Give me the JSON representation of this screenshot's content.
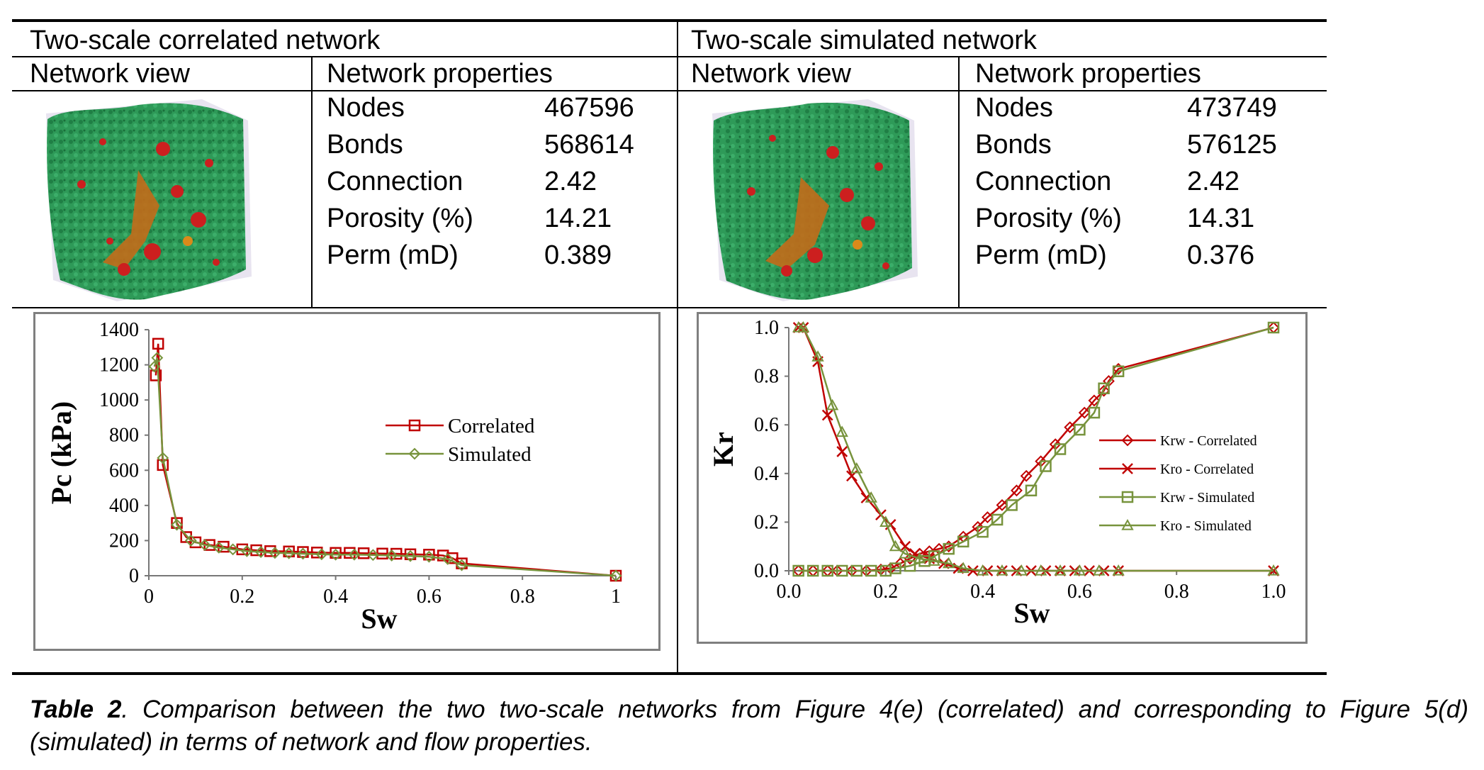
{
  "table": {
    "left": {
      "header": "Two-scale correlated network",
      "view_label": "Network view",
      "props_label": "Network properties",
      "properties": [
        {
          "name": "Nodes",
          "value": "467596"
        },
        {
          "name": "Bonds",
          "value": "568614"
        },
        {
          "name": "Connection",
          "value": "2.42"
        },
        {
          "name": "Porosity (%)",
          "value": "14.21"
        },
        {
          "name": "Perm (mD)",
          "value": "0.389"
        }
      ]
    },
    "right": {
      "header": "Two-scale simulated network",
      "view_label": "Network view",
      "props_label": "Network properties",
      "properties": [
        {
          "name": "Nodes",
          "value": "473749"
        },
        {
          "name": "Bonds",
          "value": "576125"
        },
        {
          "name": "Connection",
          "value": "2.42"
        },
        {
          "name": "Porosity (%)",
          "value": "14.31"
        },
        {
          "name": "Perm (mD)",
          "value": "0.376"
        }
      ]
    }
  },
  "caption": {
    "label": "Table 2",
    "text": ". Comparison between the two two-scale networks from Figure 4(e) (correlated) and corresponding to Figure 5(d) (simulated) in terms of network and flow properties."
  },
  "colors": {
    "correlated": "#c00000",
    "simulated": "#77933c",
    "frame": "#7f7f7f"
  },
  "chart_data": [
    {
      "type": "line",
      "xlabel": "Sw",
      "ylabel": "Pc (kPa)",
      "xlim": [
        0,
        1
      ],
      "ylim": [
        0,
        1400
      ],
      "xticks": [
        "0",
        "0.2",
        "0.4",
        "0.6",
        "0.8",
        "1"
      ],
      "yticks": [
        "0",
        "200",
        "400",
        "600",
        "800",
        "1000",
        "1200",
        "1400"
      ],
      "grid": false,
      "legend": "center-right",
      "series": [
        {
          "name": "Correlated",
          "marker": "square",
          "color": "#c00000",
          "x": [
            0.015,
            0.02,
            0.03,
            0.06,
            0.08,
            0.1,
            0.13,
            0.16,
            0.2,
            0.23,
            0.26,
            0.3,
            0.33,
            0.36,
            0.4,
            0.43,
            0.46,
            0.5,
            0.53,
            0.56,
            0.6,
            0.63,
            0.65,
            0.67,
            1.0
          ],
          "y": [
            1140,
            1320,
            630,
            300,
            220,
            190,
            175,
            165,
            150,
            145,
            140,
            138,
            135,
            132,
            130,
            130,
            128,
            126,
            125,
            122,
            120,
            115,
            100,
            70,
            0
          ]
        },
        {
          "name": "Simulated",
          "marker": "diamond",
          "color": "#77933c",
          "x": [
            0.012,
            0.018,
            0.03,
            0.06,
            0.09,
            0.12,
            0.15,
            0.18,
            0.21,
            0.24,
            0.27,
            0.3,
            0.33,
            0.37,
            0.4,
            0.44,
            0.48,
            0.52,
            0.56,
            0.6,
            0.64,
            0.67,
            1.0
          ],
          "y": [
            1190,
            1240,
            670,
            290,
            200,
            175,
            160,
            150,
            140,
            135,
            130,
            128,
            125,
            122,
            120,
            120,
            118,
            115,
            112,
            108,
            95,
            60,
            0
          ]
        }
      ]
    },
    {
      "type": "line",
      "xlabel": "Sw",
      "ylabel": "Kr",
      "xlim": [
        0,
        1
      ],
      "ylim": [
        0,
        1
      ],
      "xticks": [
        "0.0",
        "0.2",
        "0.4",
        "0.6",
        "0.8",
        "1.0"
      ],
      "yticks": [
        "0.0",
        "0.2",
        "0.4",
        "0.6",
        "0.8",
        "1.0"
      ],
      "grid": false,
      "legend": "center-right",
      "series": [
        {
          "name": "Krw - Correlated",
          "marker": "diamond",
          "color": "#c00000",
          "x": [
            0.02,
            0.05,
            0.08,
            0.1,
            0.13,
            0.16,
            0.19,
            0.21,
            0.23,
            0.25,
            0.27,
            0.29,
            0.31,
            0.33,
            0.36,
            0.39,
            0.41,
            0.44,
            0.47,
            0.49,
            0.52,
            0.55,
            0.58,
            0.61,
            0.63,
            0.65,
            0.66,
            0.68,
            1.0
          ],
          "y": [
            0,
            0,
            0,
            0,
            0,
            0,
            0.005,
            0.01,
            0.03,
            0.05,
            0.07,
            0.08,
            0.09,
            0.1,
            0.14,
            0.18,
            0.22,
            0.27,
            0.33,
            0.39,
            0.45,
            0.52,
            0.59,
            0.65,
            0.7,
            0.74,
            0.78,
            0.83,
            1.0
          ]
        },
        {
          "name": "Kro - Correlated",
          "marker": "cross",
          "color": "#c00000",
          "x": [
            0.02,
            0.03,
            0.06,
            0.08,
            0.11,
            0.13,
            0.16,
            0.19,
            0.21,
            0.24,
            0.26,
            0.29,
            0.32,
            0.35,
            0.38,
            0.41,
            0.44,
            0.47,
            0.5,
            0.53,
            0.56,
            0.59,
            0.62,
            0.65,
            0.68,
            1.0
          ],
          "y": [
            1.0,
            1.0,
            0.86,
            0.64,
            0.49,
            0.39,
            0.3,
            0.23,
            0.19,
            0.1,
            0.07,
            0.05,
            0.03,
            0.01,
            0,
            0,
            0,
            0,
            0,
            0,
            0,
            0,
            0,
            0,
            0,
            0
          ]
        },
        {
          "name": "Krw - Simulated",
          "marker": "square",
          "color": "#77933c",
          "x": [
            0.02,
            0.05,
            0.08,
            0.11,
            0.14,
            0.17,
            0.2,
            0.22,
            0.25,
            0.28,
            0.3,
            0.33,
            0.36,
            0.4,
            0.43,
            0.46,
            0.5,
            0.53,
            0.56,
            0.6,
            0.63,
            0.65,
            0.68,
            1.0
          ],
          "y": [
            0,
            0,
            0,
            0,
            0,
            0,
            0,
            0.01,
            0.02,
            0.04,
            0.06,
            0.09,
            0.12,
            0.16,
            0.21,
            0.27,
            0.33,
            0.43,
            0.5,
            0.58,
            0.65,
            0.75,
            0.82,
            1.0
          ]
        },
        {
          "name": "Kro - Simulated",
          "marker": "triangle",
          "color": "#77933c",
          "x": [
            0.02,
            0.03,
            0.06,
            0.09,
            0.11,
            0.14,
            0.17,
            0.2,
            0.22,
            0.24,
            0.27,
            0.3,
            0.33,
            0.36,
            0.4,
            0.44,
            0.48,
            0.52,
            0.56,
            0.6,
            0.64,
            0.68,
            1.0
          ],
          "y": [
            1.0,
            1.0,
            0.88,
            0.68,
            0.57,
            0.42,
            0.3,
            0.2,
            0.1,
            0.07,
            0.05,
            0.04,
            0.03,
            0.01,
            0,
            0,
            0,
            0,
            0,
            0,
            0,
            0,
            0
          ]
        }
      ]
    }
  ]
}
